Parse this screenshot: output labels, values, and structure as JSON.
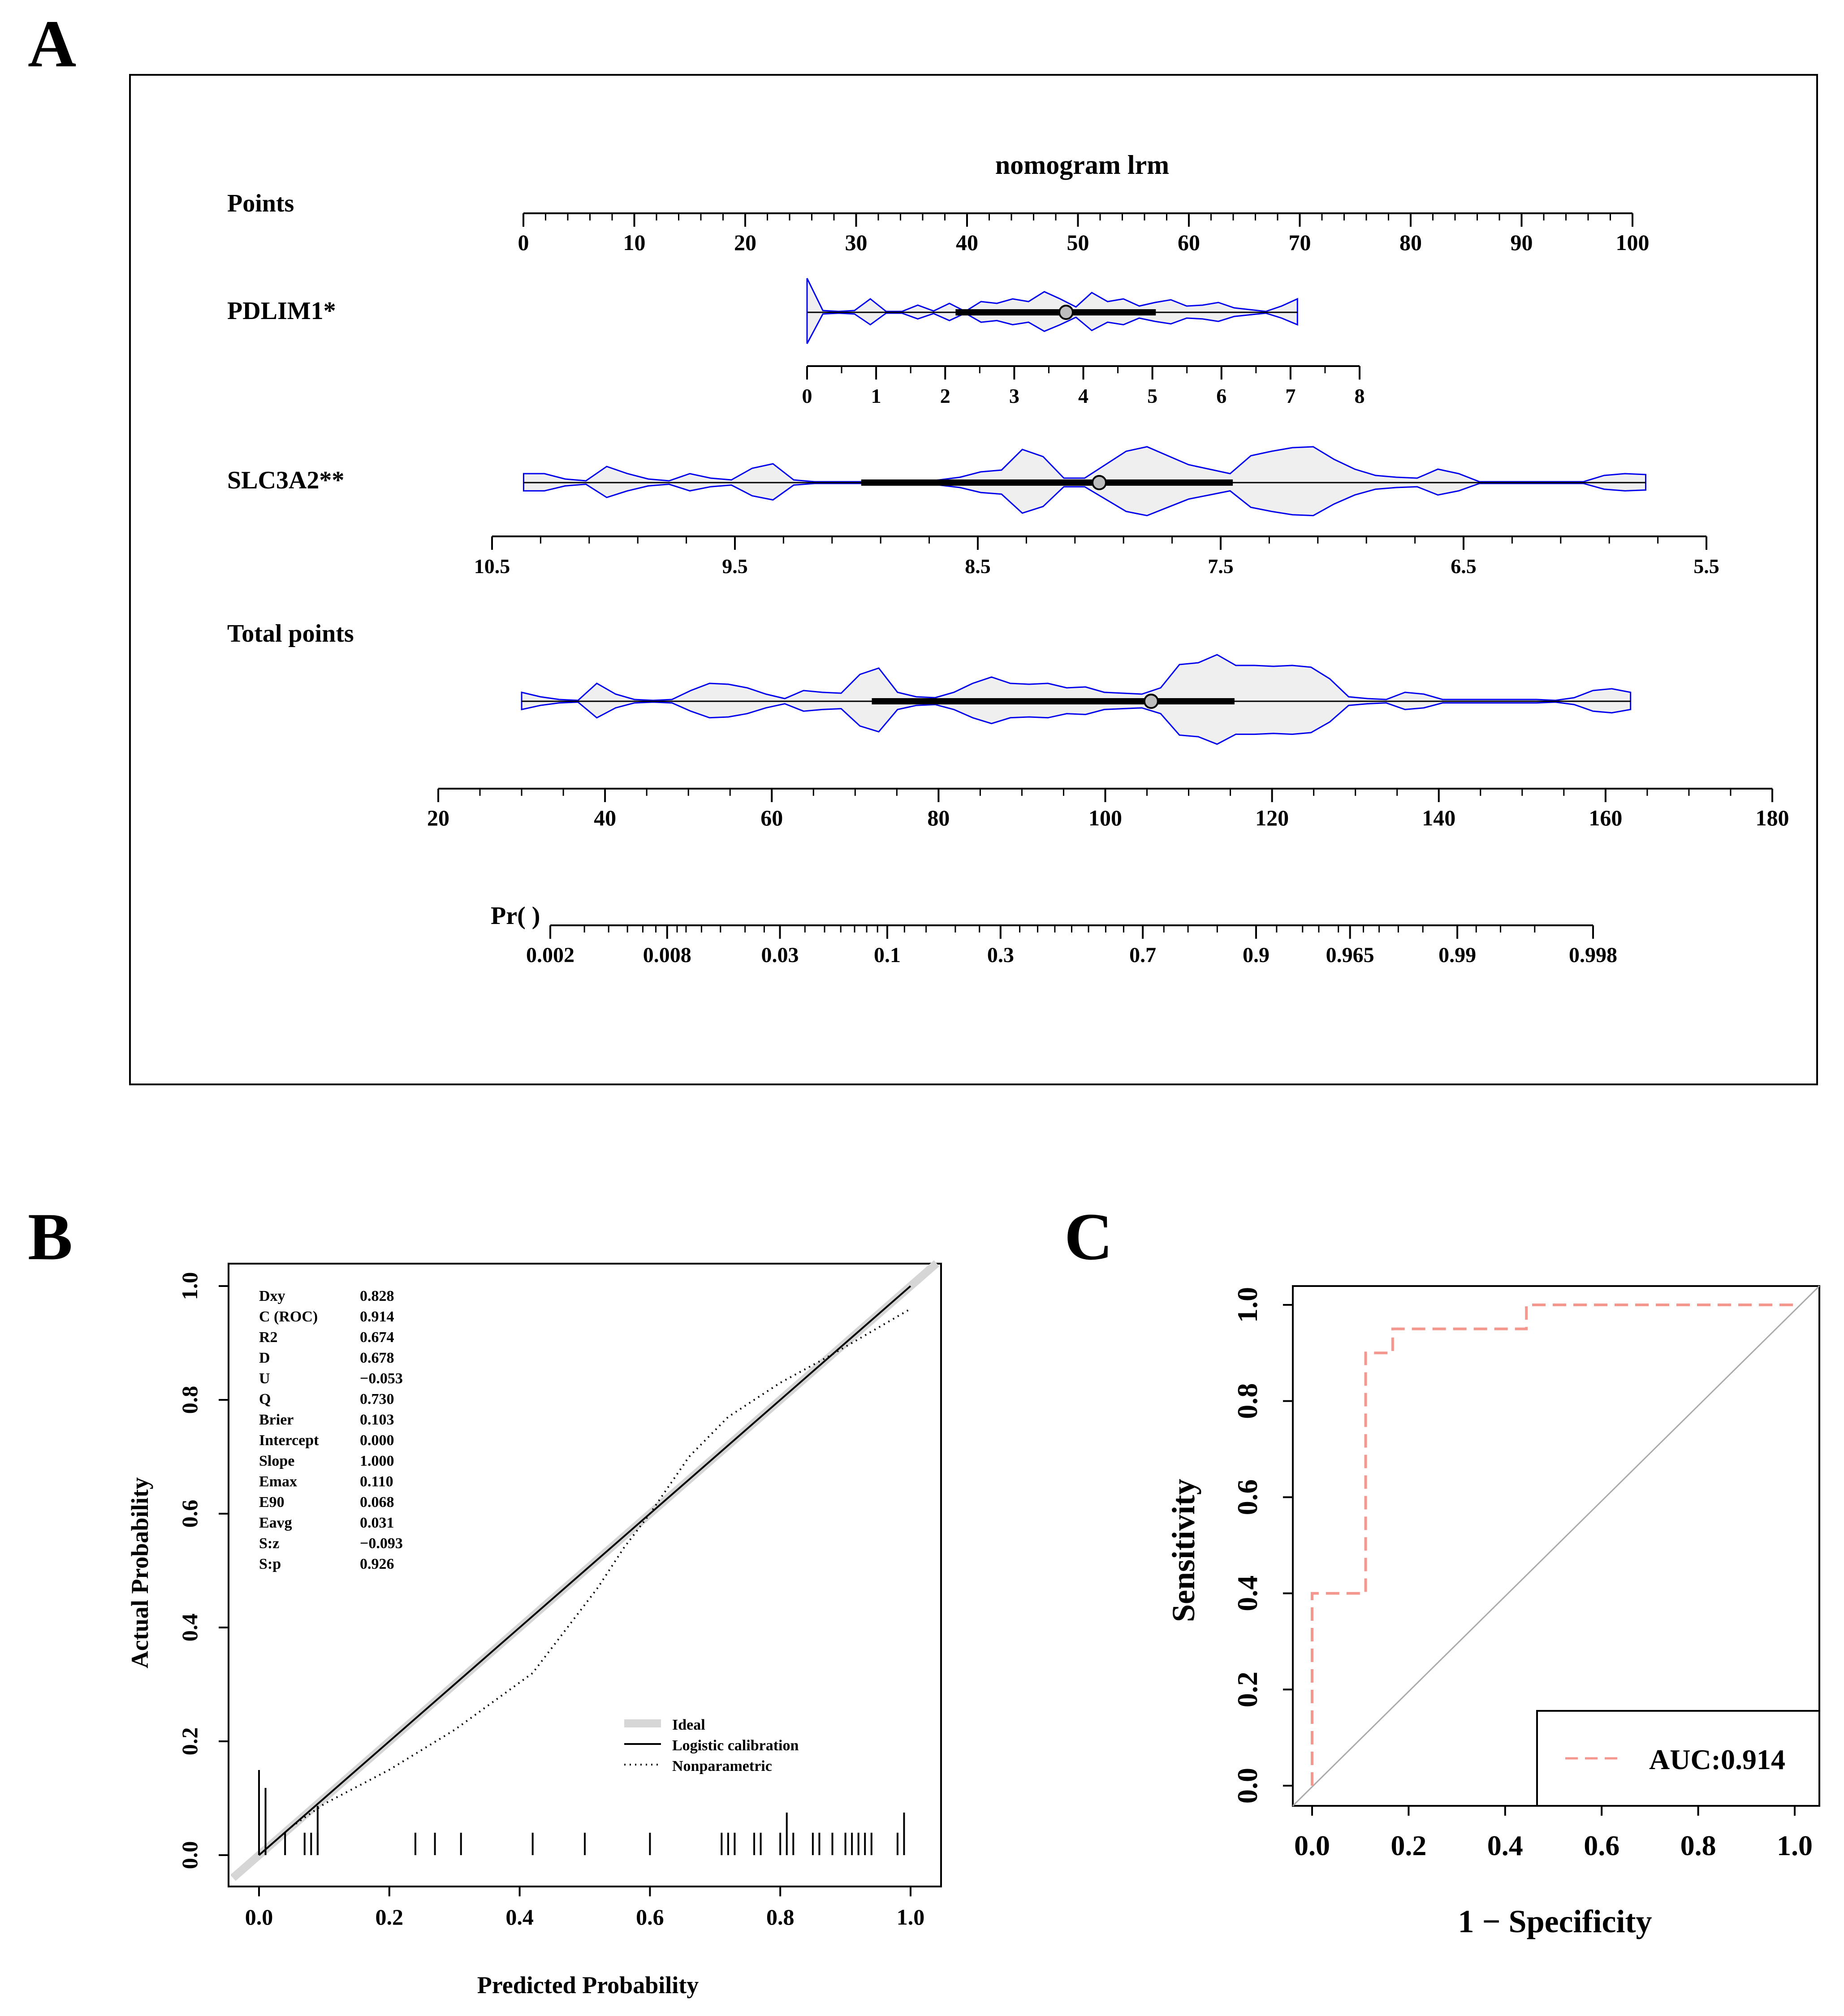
{
  "panel_labels": {
    "a": "A",
    "b": "B",
    "c": "C"
  },
  "colors": {
    "violin_line": "#0000ee",
    "violin_fill": "#efefef",
    "roc_line": "#f4978e",
    "diag": "#aaaaaa",
    "ideal": "#d6d6d6"
  },
  "chart_data": [
    {
      "panel": "A",
      "type": "nomogram",
      "title": "nomogram lrm",
      "rows": [
        {
          "label": "Points",
          "ticks": [
            "0",
            "10",
            "20",
            "30",
            "40",
            "50",
            "60",
            "70",
            "80",
            "90",
            "100"
          ]
        },
        {
          "label": "PDLIM1*",
          "ticks": [
            "0",
            "1",
            "2",
            "3",
            "4",
            "5",
            "6",
            "7",
            "8"
          ],
          "median": 3.75,
          "iqr": [
            2.15,
            5.05
          ],
          "range": [
            0,
            7.1
          ]
        },
        {
          "label": "SLC3A2**",
          "ticks": [
            "10.5",
            "9.5",
            "8.5",
            "7.5",
            "6.5",
            "5.5"
          ],
          "median": 8.0,
          "iqr": [
            8.98,
            7.45
          ],
          "range": [
            10.37,
            5.75
          ]
        },
        {
          "label": "Total points",
          "ticks": [
            "20",
            "40",
            "60",
            "80",
            "100",
            "120",
            "140",
            "160",
            "180"
          ],
          "median": 105.5,
          "iqr": [
            72,
            115.5
          ],
          "range": [
            30,
            163
          ]
        },
        {
          "label": "Pr( )",
          "ticks": [
            "0.002",
            "0.008",
            "0.03",
            "0.1",
            "0.3",
            "0.7",
            "0.9",
            "0.965",
            "0.99",
            "0.998"
          ]
        }
      ]
    },
    {
      "panel": "B",
      "type": "line",
      "title": "",
      "xlabel": "Predicted Probability",
      "ylabel": "Actual Probability",
      "xlim": [
        0,
        1
      ],
      "ylim": [
        0,
        1
      ],
      "x_ticks": [
        "0.0",
        "0.2",
        "0.4",
        "0.6",
        "0.8",
        "1.0"
      ],
      "y_ticks": [
        "0.0",
        "0.2",
        "0.4",
        "0.6",
        "0.8",
        "1.0"
      ],
      "stats": [
        {
          "name": "Dxy",
          "value": "0.828"
        },
        {
          "name": "C (ROC)",
          "value": "0.914"
        },
        {
          "name": "R2",
          "value": "0.674"
        },
        {
          "name": "D",
          "value": "0.678"
        },
        {
          "name": "U",
          "value": "−0.053"
        },
        {
          "name": "Q",
          "value": "0.730"
        },
        {
          "name": "Brier",
          "value": "0.103"
        },
        {
          "name": "Intercept",
          "value": "0.000"
        },
        {
          "name": "Slope",
          "value": "1.000"
        },
        {
          "name": "Emax",
          "value": "0.110"
        },
        {
          "name": "E90",
          "value": "0.068"
        },
        {
          "name": "Eavg",
          "value": "0.031"
        },
        {
          "name": "S:z",
          "value": "−0.093"
        },
        {
          "name": "S:p",
          "value": "0.926"
        }
      ],
      "legend": [
        "Ideal",
        "Logistic calibration",
        "Nonparametric"
      ],
      "series": [
        {
          "name": "Ideal",
          "x": [
            -0.04,
            1.04
          ],
          "y": [
            -0.04,
            1.04
          ]
        },
        {
          "name": "Logistic calibration",
          "x": [
            0,
            1
          ],
          "y": [
            0,
            1
          ]
        },
        {
          "name": "Nonparametric",
          "x": [
            0,
            0.05,
            0.1,
            0.2,
            0.3,
            0.42,
            0.46,
            0.52,
            0.56,
            0.6,
            0.66,
            0.72,
            0.8,
            0.88,
            0.94,
            1.0
          ],
          "y": [
            0,
            0.05,
            0.09,
            0.15,
            0.22,
            0.32,
            0.38,
            0.47,
            0.54,
            0.6,
            0.7,
            0.77,
            0.83,
            0.88,
            0.92,
            0.96
          ]
        }
      ],
      "rug_bottom": [
        0.0,
        0.04,
        0.07,
        0.08,
        0.09,
        0.24,
        0.27,
        0.31,
        0.42,
        0.5,
        0.6,
        0.71,
        0.72,
        0.73,
        0.76,
        0.77,
        0.8,
        0.81,
        0.82,
        0.85,
        0.86,
        0.88,
        0.9,
        0.91,
        0.92,
        0.93,
        0.94,
        0.98,
        0.99
      ],
      "rug_top": [
        0.0,
        0.01,
        0.09,
        0.81,
        0.99
      ]
    },
    {
      "panel": "C",
      "type": "line",
      "title": "",
      "xlabel": "1 − Specificity",
      "ylabel": "Sensitivity",
      "xlim": [
        0,
        1
      ],
      "ylim": [
        0,
        1
      ],
      "x_ticks": [
        "0.0",
        "0.2",
        "0.4",
        "0.6",
        "0.8",
        "1.0"
      ],
      "y_ticks": [
        "0.0",
        "0.2",
        "0.4",
        "0.6",
        "0.8",
        "1.0"
      ],
      "legend": [
        "AUC:0.914"
      ],
      "series": [
        {
          "name": "ROC",
          "x": [
            0,
            0,
            0.111,
            0.111,
            0.167,
            0.167,
            0.444,
            0.444,
            1.0
          ],
          "y": [
            0,
            0.4,
            0.4,
            0.9,
            0.9,
            0.95,
            0.95,
            1.0,
            1.0
          ]
        },
        {
          "name": "Chance",
          "x": [
            0,
            1
          ],
          "y": [
            0,
            1
          ]
        }
      ]
    }
  ]
}
